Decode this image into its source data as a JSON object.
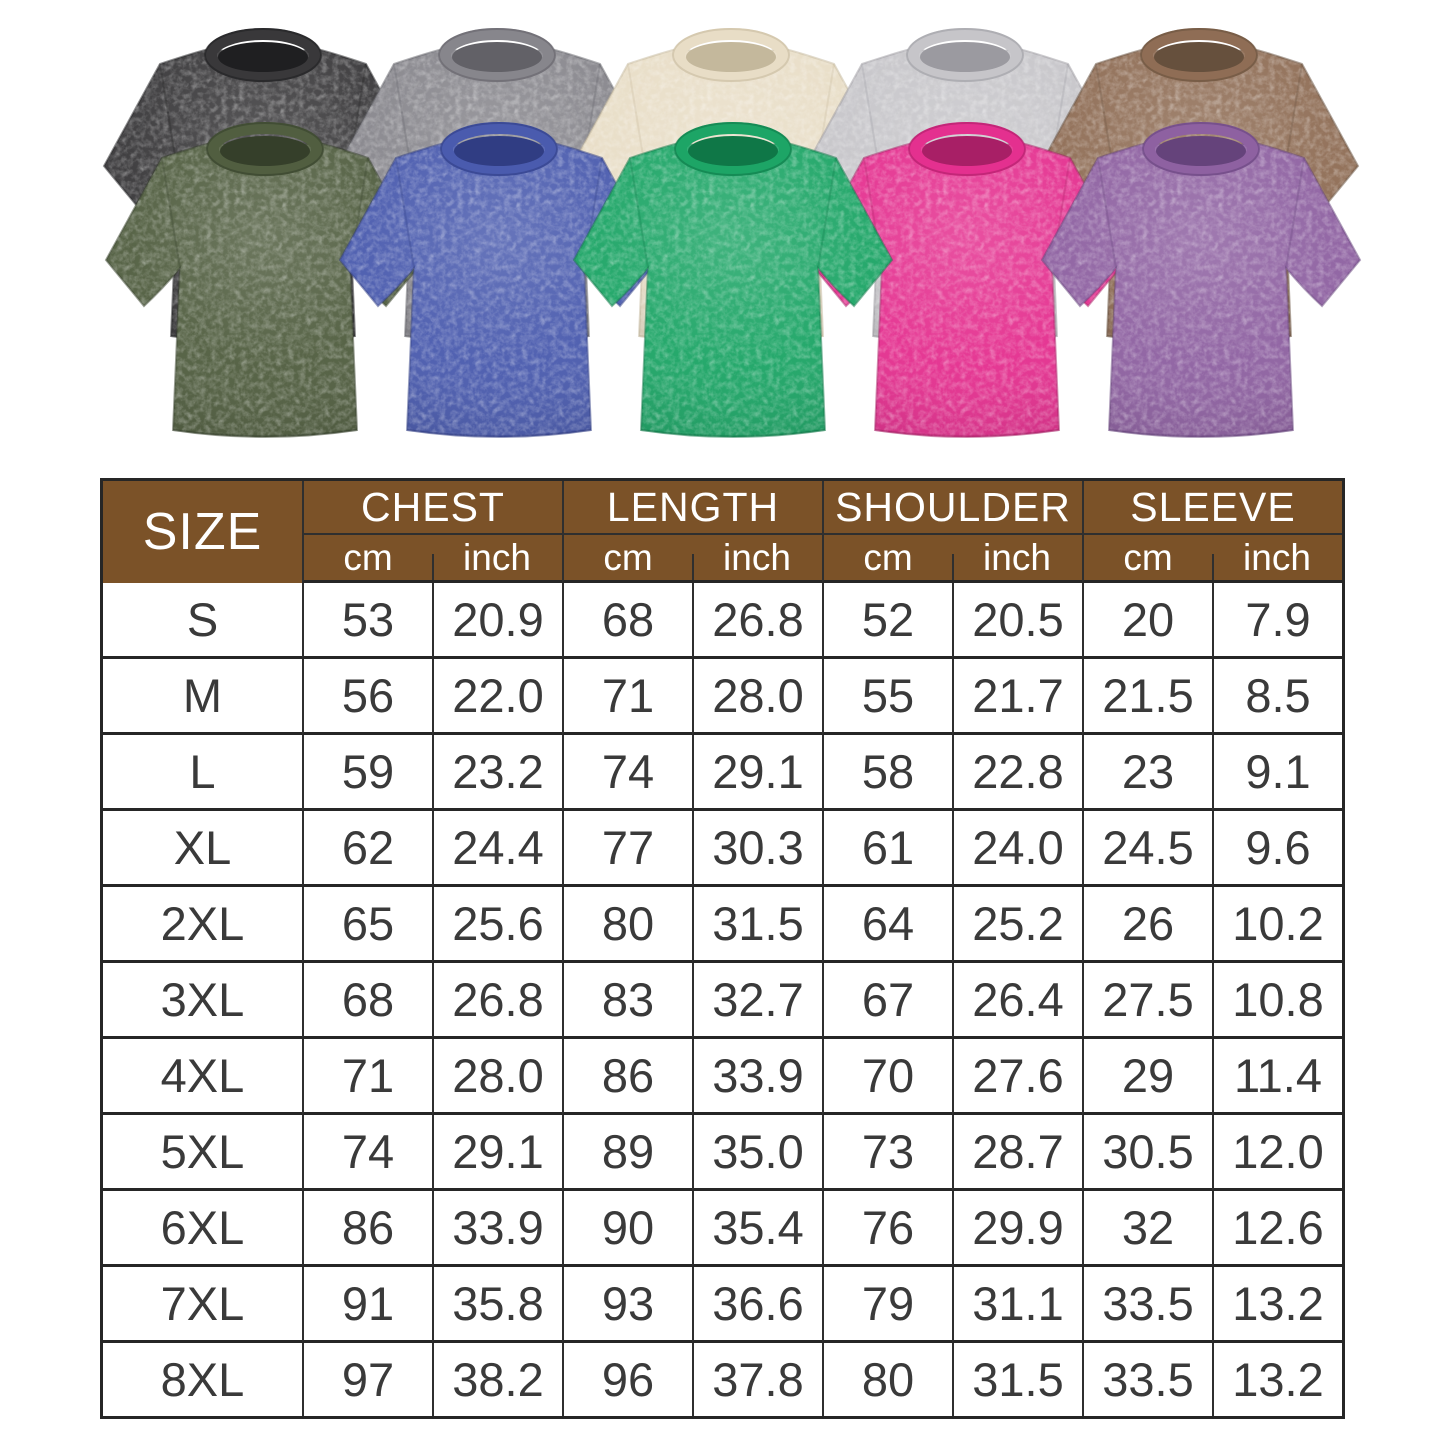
{
  "colors": {
    "page_bg": "#ffffff",
    "header_bg": "#7b5228",
    "header_text": "#ffffff",
    "grid": "#2f2f2f",
    "grid_heavy": "#262626",
    "cell_text": "#3a3a3a"
  },
  "gallery": {
    "shirts": [
      {
        "name": "black",
        "row": "back",
        "order": 0,
        "base": "#39383a",
        "deep": "#1f1f21"
      },
      {
        "name": "dark-gray",
        "row": "back",
        "order": 1,
        "base": "#87868c",
        "deep": "#626167"
      },
      {
        "name": "beige",
        "row": "back",
        "order": 2,
        "base": "#e8ddc6",
        "deep": "#c4b89c"
      },
      {
        "name": "light-gray",
        "row": "back",
        "order": 3,
        "base": "#c6c5c9",
        "deep": "#9b9aa0"
      },
      {
        "name": "brown",
        "row": "back",
        "order": 4,
        "base": "#8f6d55",
        "deep": "#66503d"
      },
      {
        "name": "army-green",
        "row": "front",
        "order": 0,
        "base": "#515e40",
        "deep": "#353f2a"
      },
      {
        "name": "blue",
        "row": "front",
        "order": 1,
        "base": "#4a5bae",
        "deep": "#303d83"
      },
      {
        "name": "green",
        "row": "front",
        "order": 2,
        "base": "#1da566",
        "deep": "#0f7747"
      },
      {
        "name": "rose-pink",
        "row": "front",
        "order": 3,
        "base": "#e4308f",
        "deep": "#a81f66"
      },
      {
        "name": "purple",
        "row": "front",
        "order": 4,
        "base": "#8e61a1",
        "deep": "#65437b"
      }
    ]
  },
  "chart_data": {
    "type": "table",
    "header": {
      "size_label": "SIZE",
      "groups": [
        "CHEST",
        "LENGTH",
        "SHOULDER",
        "SLEEVE"
      ],
      "unit_labels": [
        "cm",
        "inch"
      ]
    },
    "rows": [
      {
        "size": "S",
        "values": [
          "53",
          "20.9",
          "68",
          "26.8",
          "52",
          "20.5",
          "20",
          "7.9"
        ]
      },
      {
        "size": "M",
        "values": [
          "56",
          "22.0",
          "71",
          "28.0",
          "55",
          "21.7",
          "21.5",
          "8.5"
        ]
      },
      {
        "size": "L",
        "values": [
          "59",
          "23.2",
          "74",
          "29.1",
          "58",
          "22.8",
          "23",
          "9.1"
        ]
      },
      {
        "size": "XL",
        "values": [
          "62",
          "24.4",
          "77",
          "30.3",
          "61",
          "24.0",
          "24.5",
          "9.6"
        ]
      },
      {
        "size": "2XL",
        "values": [
          "65",
          "25.6",
          "80",
          "31.5",
          "64",
          "25.2",
          "26",
          "10.2"
        ]
      },
      {
        "size": "3XL",
        "values": [
          "68",
          "26.8",
          "83",
          "32.7",
          "67",
          "26.4",
          "27.5",
          "10.8"
        ]
      },
      {
        "size": "4XL",
        "values": [
          "71",
          "28.0",
          "86",
          "33.9",
          "70",
          "27.6",
          "29",
          "11.4"
        ]
      },
      {
        "size": "5XL",
        "values": [
          "74",
          "29.1",
          "89",
          "35.0",
          "73",
          "28.7",
          "30.5",
          "12.0"
        ]
      },
      {
        "size": "6XL",
        "values": [
          "86",
          "33.9",
          "90",
          "35.4",
          "76",
          "29.9",
          "32",
          "12.6"
        ]
      },
      {
        "size": "7XL",
        "values": [
          "91",
          "35.8",
          "93",
          "36.6",
          "79",
          "31.1",
          "33.5",
          "13.2"
        ]
      },
      {
        "size": "8XL",
        "values": [
          "97",
          "38.2",
          "96",
          "37.8",
          "80",
          "31.5",
          "33.5",
          "13.2"
        ]
      }
    ]
  }
}
